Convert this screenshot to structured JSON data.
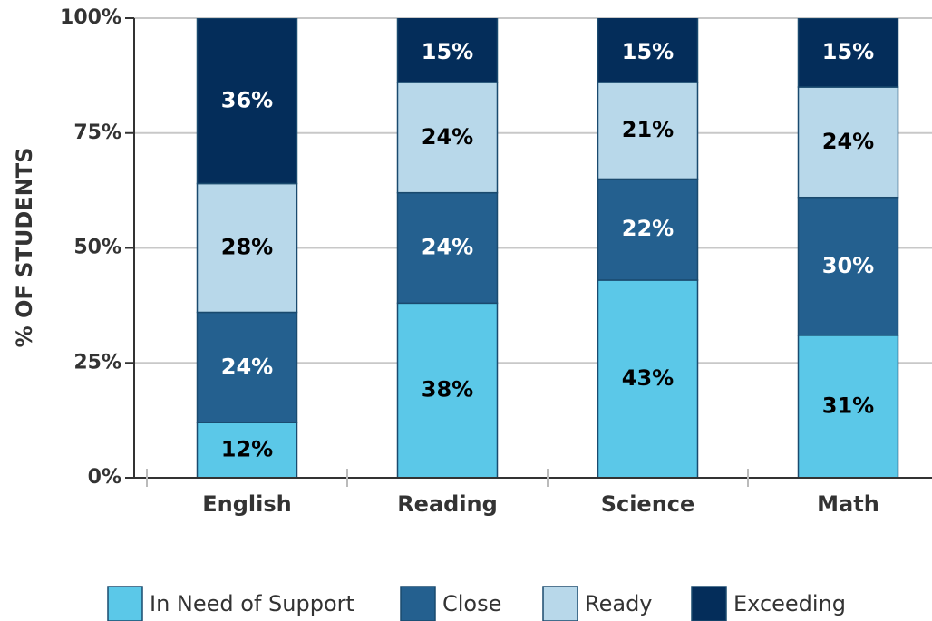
{
  "chart_data": {
    "type": "stacked_bar",
    "ylabel": "% OF STUDENTS",
    "categories": [
      "English",
      "Reading",
      "Science",
      "Math"
    ],
    "series": [
      {
        "name": "In Need of Support",
        "color": "#5bc8e8",
        "label_color": "#000000",
        "values": [
          12,
          38,
          43,
          31
        ],
        "value_labels": [
          "12%",
          "38%",
          "43%",
          "31%"
        ]
      },
      {
        "name": "Close",
        "color": "#24608f",
        "label_color": "#ffffff",
        "values": [
          24,
          24,
          22,
          30
        ],
        "value_labels": [
          "24%",
          "24%",
          "22%",
          "30%"
        ]
      },
      {
        "name": "Ready",
        "color": "#b8d8ea",
        "label_color": "#000000",
        "values": [
          28,
          24,
          21,
          24
        ],
        "value_labels": [
          "28%",
          "24%",
          "21%",
          "24%"
        ]
      },
      {
        "name": "Exceeding",
        "color": "#042d5a",
        "label_color": "#ffffff",
        "values": [
          36,
          15,
          15,
          15
        ],
        "value_labels": [
          "36%",
          "15%",
          "15%",
          "15%"
        ]
      }
    ],
    "ylim": [
      0,
      100
    ],
    "yticks": [
      {
        "value": 0,
        "label": "0%"
      },
      {
        "value": 25,
        "label": "25%"
      },
      {
        "value": 50,
        "label": "50%"
      },
      {
        "value": 75,
        "label": "75%"
      },
      {
        "value": 100,
        "label": "100%"
      }
    ],
    "grid": true,
    "legend": "bottom"
  }
}
